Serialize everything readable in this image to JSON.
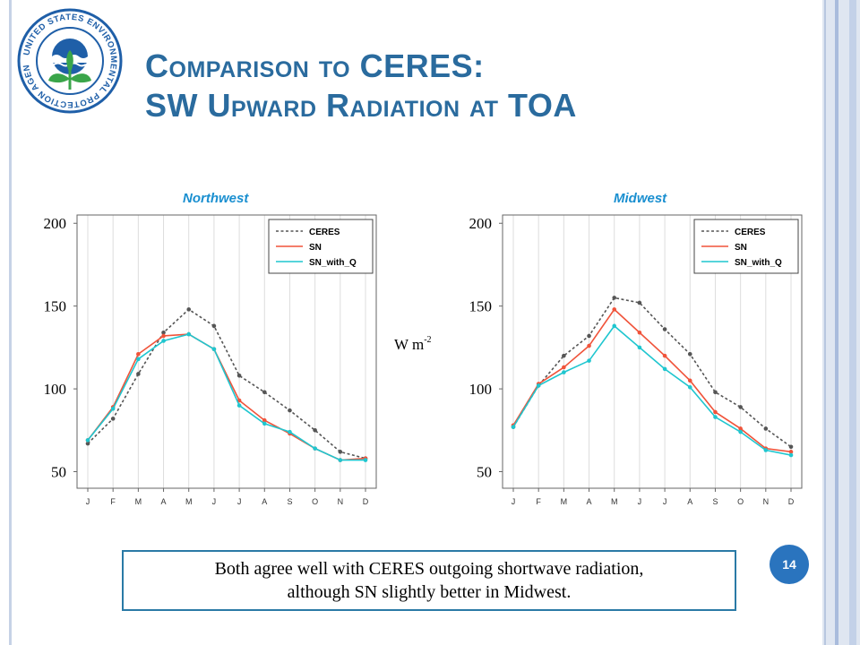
{
  "slide": {
    "title_line1": "Comparison to CERES:",
    "title_line2": "SW Upward Radiation at TOA",
    "ylabel_main": "W m",
    "ylabel_exp": "-2",
    "callout_line1": "Both agree well with CERES outgoing shortwave radiation,",
    "callout_line2": "although SN slightly better in Midwest.",
    "page_number": "14",
    "logo_text": "UNITED STATES ENVIRONMENTAL PROTECTION AGENCY"
  },
  "colors": {
    "title": "#2a6b9e",
    "ceres": "#555555",
    "sn": "#f0533a",
    "sn_with_q": "#1fc6cf",
    "chart_title": "#1a8fd0"
  },
  "chart_data": [
    {
      "type": "line",
      "title": "Northwest",
      "categories": [
        "J",
        "F",
        "M",
        "A",
        "M",
        "J",
        "J",
        "A",
        "S",
        "O",
        "N",
        "D"
      ],
      "ylim": [
        40,
        205
      ],
      "yticks": [
        50,
        100,
        150,
        200
      ],
      "grid": "vertical",
      "legend": "top-right",
      "series": [
        {
          "name": "CERES",
          "style": "dotted",
          "values": [
            67,
            82,
            109,
            134,
            148,
            138,
            108,
            98,
            87,
            75,
            62,
            58
          ]
        },
        {
          "name": "SN",
          "style": "solid",
          "values": [
            69,
            89,
            121,
            132,
            133,
            124,
            93,
            81,
            73,
            64,
            57,
            58
          ]
        },
        {
          "name": "SN_with_Q",
          "style": "solid",
          "values": [
            69,
            88,
            118,
            129,
            133,
            124,
            90,
            79,
            74,
            64,
            57,
            57
          ]
        }
      ]
    },
    {
      "type": "line",
      "title": "Midwest",
      "categories": [
        "J",
        "F",
        "M",
        "A",
        "M",
        "J",
        "J",
        "A",
        "S",
        "O",
        "N",
        "D"
      ],
      "ylim": [
        40,
        205
      ],
      "yticks": [
        50,
        100,
        150,
        200
      ],
      "grid": "vertical",
      "legend": "top-right",
      "series": [
        {
          "name": "CERES",
          "style": "dotted",
          "values": [
            77,
            102,
            120,
            132,
            155,
            152,
            136,
            121,
            98,
            89,
            76,
            65
          ]
        },
        {
          "name": "SN",
          "style": "solid",
          "values": [
            78,
            103,
            113,
            126,
            148,
            134,
            120,
            105,
            86,
            76,
            64,
            62
          ]
        },
        {
          "name": "SN_with_Q",
          "style": "solid",
          "values": [
            77,
            102,
            110,
            117,
            138,
            125,
            112,
            101,
            83,
            74,
            63,
            60
          ]
        }
      ]
    }
  ]
}
